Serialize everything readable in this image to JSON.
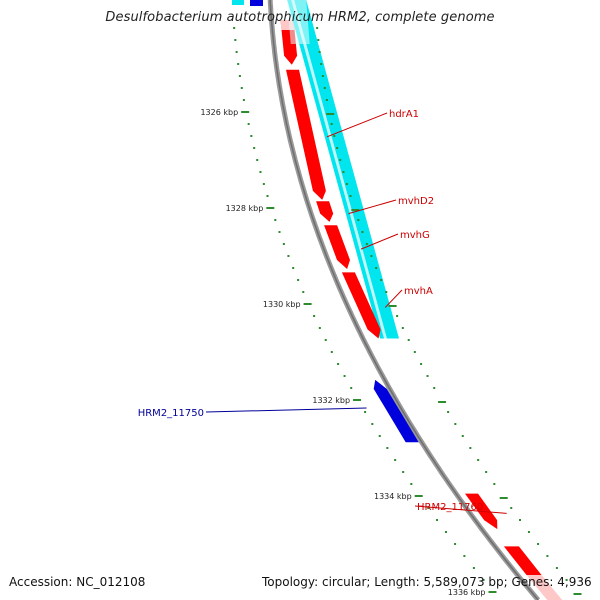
{
  "header": {
    "title": "Desulfobacterium autotrophicum HRM2, complete genome"
  },
  "footer": {
    "accession": "Accession: NC_012108",
    "summary": "Topology: circular; Length: 5,589,073 bp; Genes: 4,936"
  },
  "colors": {
    "backbone": "#8c8c8c",
    "forward_gene": "#ff0000",
    "forward_gene_faded": "#ffc8c8",
    "reverse_gene": "#0000dd",
    "operon_band": "#00e5ee",
    "tick": "#2e8b2e",
    "forward_label": "#cc0000",
    "reverse_label": "#000099"
  },
  "ruler": {
    "unit": "kbp",
    "labels": [
      "1326 kbp",
      "1328 kbp",
      "1330 kbp",
      "1332 kbp",
      "1334 kbp",
      "1336 kbp"
    ],
    "label_positions_kbp": [
      1326,
      1328,
      1330,
      1332,
      1334,
      1336
    ]
  },
  "genes": [
    {
      "label": "hdrA1",
      "strand": "forward",
      "start_kbp": 1325.12,
      "end_kbp": 1327.83
    },
    {
      "label": "mvhD2",
      "strand": "forward",
      "start_kbp": 1327.86,
      "end_kbp": 1328.29
    },
    {
      "label": "mvhG",
      "strand": "forward",
      "start_kbp": 1328.36,
      "end_kbp": 1329.27
    },
    {
      "label": "mvhA",
      "strand": "forward",
      "start_kbp": 1329.34,
      "end_kbp": 1330.72
    },
    {
      "label": "HRM2_11750",
      "strand": "reverse",
      "start_kbp": 1331.58,
      "end_kbp": 1332.88
    },
    {
      "label": "HRM2_11760",
      "strand": "forward",
      "start_kbp": 1333.95,
      "end_kbp": 1334.69
    }
  ]
}
